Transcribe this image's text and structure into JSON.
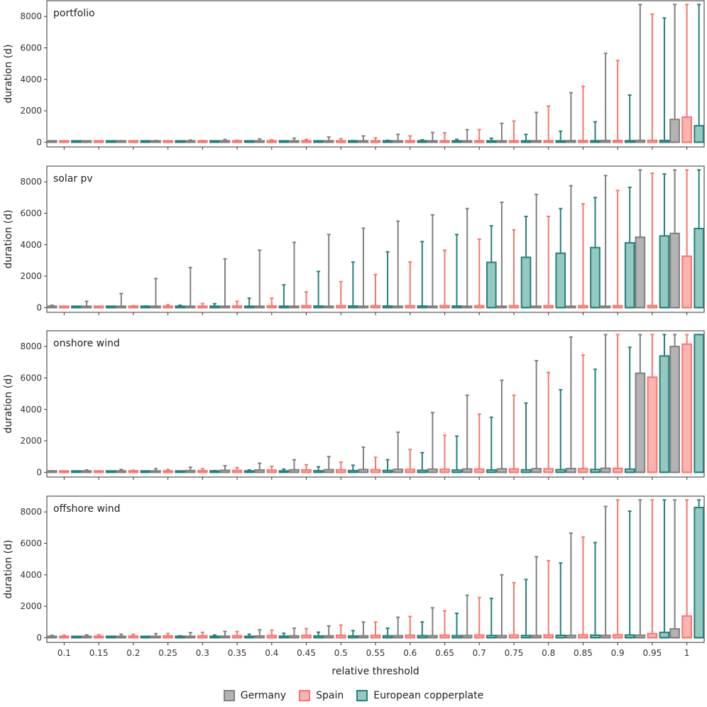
{
  "chart_data": {
    "type": "boxplot",
    "xlabel": "relative threshold",
    "ylabel": "duration (d)",
    "ylim": [
      -300,
      9000
    ],
    "yticks": [
      0,
      2000,
      4000,
      6000,
      8000
    ],
    "categories": [
      "0.1",
      "0.15",
      "0.2",
      "0.25",
      "0.3",
      "0.35",
      "0.4",
      "0.45",
      "0.5",
      "0.55",
      "0.6",
      "0.65",
      "0.7",
      "0.75",
      "0.8",
      "0.85",
      "0.9",
      "0.95",
      "1"
    ],
    "groups": [
      {
        "name": "Germany",
        "fill": "#b3b3b3",
        "stroke": "#808080"
      },
      {
        "name": "Spain",
        "fill": "#fbb4b0",
        "stroke": "#f8766d"
      },
      {
        "name": "European copperplate",
        "fill": "#93c9c1",
        "stroke": "#24807a"
      }
    ],
    "panels": [
      {
        "title": "portfolio",
        "series": {
          "Germany": {
            "q3": [
              25,
              30,
              35,
              40,
              45,
              50,
              55,
              60,
              65,
              70,
              75,
              80,
              85,
              90,
              95,
              100,
              110,
              120,
              1450
            ],
            "max": [
              60,
              70,
              90,
              110,
              140,
              170,
              210,
              260,
              330,
              400,
              500,
              620,
              800,
              1200,
              1900,
              3150,
              5650,
              8760,
              8760
            ]
          },
          "Spain": {
            "q3": [
              25,
              30,
              35,
              40,
              45,
              50,
              55,
              60,
              65,
              70,
              75,
              80,
              85,
              90,
              95,
              100,
              110,
              120,
              1600
            ],
            "max": [
              50,
              60,
              70,
              80,
              100,
              120,
              150,
              180,
              220,
              280,
              400,
              600,
              800,
              1350,
              2300,
              3550,
              5200,
              8150,
              8760
            ]
          },
          "European copperplate": {
            "q3": [
              20,
              25,
              30,
              35,
              40,
              45,
              50,
              55,
              60,
              65,
              70,
              75,
              80,
              85,
              90,
              95,
              100,
              110,
              1050
            ],
            "max": [
              30,
              35,
              40,
              45,
              60,
              70,
              80,
              90,
              100,
              120,
              150,
              180,
              250,
              500,
              700,
              1300,
              3000,
              7900,
              8760
            ]
          }
        }
      },
      {
        "title": "solar pv",
        "series": {
          "Germany": {
            "q3": [
              40,
              60,
              60,
              60,
              60,
              60,
              60,
              60,
              60,
              60,
              60,
              60,
              60,
              60,
              60,
              60,
              60,
              4480,
              4720
            ],
            "max": [
              150,
              400,
              900,
              1850,
              2550,
              3100,
              3650,
              4150,
              4650,
              5050,
              5500,
              5900,
              6300,
              6700,
              7200,
              7750,
              8400,
              8760,
              8760
            ]
          },
          "Spain": {
            "q3": [
              30,
              40,
              50,
              60,
              80,
              100,
              110,
              120,
              120,
              120,
              120,
              120,
              120,
              120,
              120,
              120,
              120,
              130,
              3270
            ],
            "max": [
              60,
              80,
              120,
              180,
              260,
              400,
              600,
              1000,
              1650,
              2100,
              2900,
              3650,
              4350,
              4950,
              5800,
              6600,
              7450,
              8550,
              8760
            ]
          },
          "European copperplate": {
            "q3": [
              30,
              40,
              50,
              60,
              70,
              80,
              90,
              100,
              100,
              100,
              100,
              100,
              2880,
              3200,
              3460,
              3820,
              4120,
              4560,
              5030
            ],
            "max": [
              60,
              80,
              100,
              150,
              250,
              600,
              1450,
              2300,
              2900,
              3550,
              4200,
              4650,
              5200,
              5800,
              6300,
              7000,
              7650,
              8500,
              8760
            ]
          }
        }
      },
      {
        "title": "onshore wind",
        "series": {
          "Germany": {
            "q3": [
              50,
              60,
              70,
              90,
              110,
              130,
              150,
              160,
              170,
              180,
              190,
              200,
              210,
              220,
              230,
              240,
              260,
              6300,
              8000
            ],
            "max": [
              100,
              150,
              180,
              230,
              320,
              420,
              580,
              800,
              1000,
              1600,
              2550,
              3800,
              4900,
              5850,
              7100,
              8600,
              8760,
              8760,
              8760
            ]
          },
          "Spain": {
            "q3": [
              40,
              50,
              60,
              80,
              100,
              120,
              140,
              150,
              160,
              170,
              180,
              190,
              200,
              210,
              220,
              230,
              250,
              6050,
              8150
            ],
            "max": [
              60,
              90,
              130,
              180,
              230,
              300,
              380,
              480,
              650,
              950,
              1450,
              2350,
              3700,
              4900,
              6350,
              7450,
              8760,
              8760,
              8760
            ]
          },
          "European copperplate": {
            "q3": [
              30,
              40,
              50,
              60,
              70,
              80,
              90,
              100,
              110,
              120,
              130,
              140,
              150,
              160,
              170,
              180,
              200,
              7400,
              8760
            ],
            "max": [
              40,
              50,
              60,
              80,
              110,
              150,
              200,
              350,
              450,
              800,
              1250,
              2300,
              3500,
              4400,
              5250,
              6550,
              7950,
              8760,
              8760
            ]
          }
        }
      },
      {
        "title": "offshore wind",
        "series": {
          "Germany": {
            "q3": [
              50,
              60,
              70,
              80,
              90,
              100,
              110,
              120,
              120,
              120,
              130,
              130,
              140,
              140,
              140,
              150,
              150,
              160,
              560
            ],
            "max": [
              150,
              180,
              220,
              260,
              320,
              400,
              500,
              600,
              750,
              1000,
              1300,
              1900,
              2700,
              4000,
              5150,
              6650,
              8350,
              8760,
              8760
            ]
          },
          "Spain": {
            "q3": [
              80,
              90,
              100,
              110,
              120,
              130,
              140,
              150,
              150,
              150,
              160,
              160,
              170,
              170,
              170,
              180,
              180,
              260,
              1380
            ],
            "max": [
              150,
              180,
              220,
              270,
              340,
              400,
              480,
              580,
              800,
              1000,
              1350,
              1700,
              2550,
              3500,
              4900,
              6400,
              8760,
              8760,
              8760
            ]
          },
          "European copperplate": {
            "q3": [
              40,
              50,
              60,
              70,
              80,
              90,
              100,
              110,
              110,
              120,
              130,
              130,
              140,
              140,
              150,
              160,
              170,
              340,
              8280
            ],
            "max": [
              50,
              70,
              80,
              120,
              170,
              220,
              280,
              350,
              450,
              600,
              1000,
              1550,
              2500,
              3700,
              4750,
              6050,
              8050,
              8760,
              8760
            ]
          }
        }
      }
    ]
  },
  "legend": {
    "items": [
      "Germany",
      "Spain",
      "European copperplate"
    ]
  }
}
